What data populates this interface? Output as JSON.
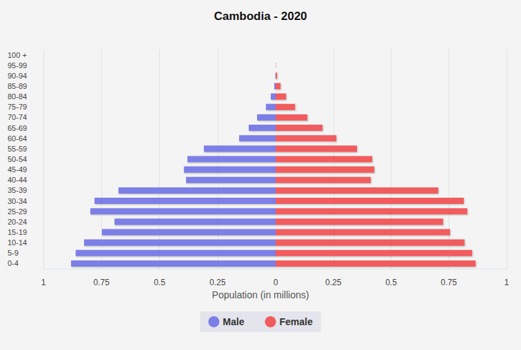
{
  "chart_data": {
    "type": "bar",
    "orientation": "horizontal",
    "title": "Cambodia - 2020",
    "x_label": "Population (in millions)",
    "categories": [
      "0-4",
      "5-9",
      "10-14",
      "15-19",
      "20-24",
      "25-29",
      "30-34",
      "35-39",
      "40-44",
      "45-49",
      "50-54",
      "55-59",
      "60-64",
      "65-69",
      "70-74",
      "75-79",
      "80-84",
      "85-89",
      "90-94",
      "95-99",
      "100 +"
    ],
    "series": [
      {
        "name": "Male",
        "color": "#7b7fe6",
        "values": [
          0.881,
          0.861,
          0.825,
          0.748,
          0.694,
          0.798,
          0.78,
          0.677,
          0.386,
          0.395,
          0.38,
          0.309,
          0.157,
          0.116,
          0.08,
          0.042,
          0.021,
          0.006,
          0.001,
          0,
          0
        ]
      },
      {
        "name": "Female",
        "color": "#f15b5e",
        "values": [
          0.866,
          0.851,
          0.818,
          0.755,
          0.725,
          0.83,
          0.815,
          0.704,
          0.412,
          0.427,
          0.418,
          0.352,
          0.263,
          0.203,
          0.137,
          0.084,
          0.045,
          0.021,
          0.006,
          0.001,
          0
        ]
      }
    ],
    "xlim": [
      0,
      1
    ],
    "xticks": [
      0,
      0.25,
      0.5,
      0.75,
      1
    ],
    "grid": true,
    "legend": "bottom"
  }
}
